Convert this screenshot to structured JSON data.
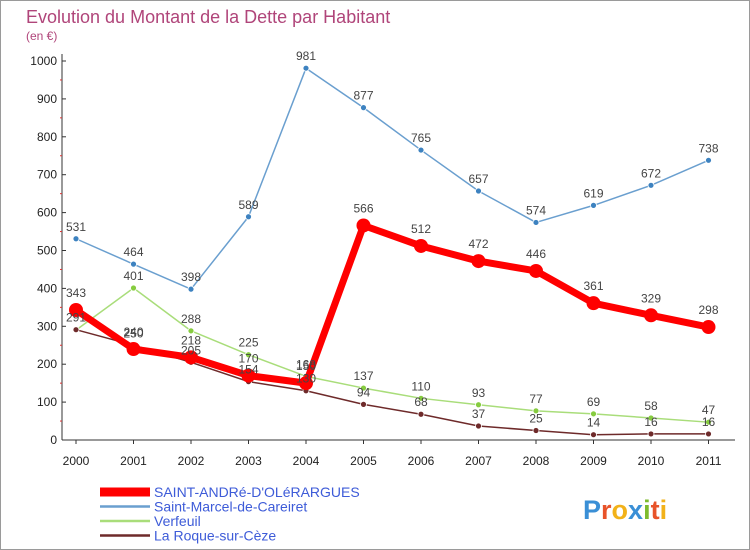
{
  "header": {
    "title": "Evolution du Montant de la Dette par Habitant",
    "subtitle": "(en €)"
  },
  "logo": {
    "letters": [
      "P",
      "r",
      "o",
      "x",
      "i",
      "t",
      "i"
    ],
    "colors": [
      "#3a8fd6",
      "#e8532a",
      "#f2b21a",
      "#3a8fd6",
      "#7dbb2e",
      "#e8532a",
      "#f2b21a"
    ]
  },
  "chart_data": {
    "type": "line",
    "title": "Evolution du Montant de la Dette par Habitant",
    "subtitle": "(en €)",
    "x": [
      "2000",
      "2001",
      "2002",
      "2003",
      "2004",
      "2005",
      "2006",
      "2007",
      "2008",
      "2009",
      "2010",
      "2011"
    ],
    "ylim": [
      0,
      1000
    ],
    "yticks": [
      0,
      100,
      200,
      300,
      400,
      500,
      600,
      700,
      800,
      900,
      1000
    ],
    "grid": false,
    "legend_position": "bottom-left",
    "series": [
      {
        "name": "Saint-Marcel-de-Careiret",
        "color": "#6a9fcf",
        "point_color": "#3d82c0",
        "values": [
          531,
          464,
          398,
          589,
          981,
          877,
          765,
          657,
          574,
          619,
          672,
          738
        ],
        "labels": [
          "531",
          "464",
          "398",
          "589",
          "981",
          "877",
          "765",
          "657",
          "574",
          "619",
          "672",
          "738"
        ]
      },
      {
        "name": "Verfeuil",
        "color": "#a9dd7a",
        "point_color": "#86cc3f",
        "values": [
          290,
          401,
          288,
          225,
          168,
          137,
          110,
          93,
          77,
          69,
          58,
          47
        ],
        "labels": [
          "",
          "401",
          "288",
          "225",
          "168",
          "137",
          "110",
          "93",
          "77",
          "69",
          "58",
          "47"
        ]
      },
      {
        "name": "La Roque-sur-Cèze",
        "color": "#6e2a2a",
        "point_color": "#6e2a2a",
        "values": [
          291,
          250,
          205,
          154,
          130,
          94,
          68,
          37,
          25,
          14,
          16,
          16
        ],
        "labels": [
          "291",
          "250",
          "205",
          "154",
          "130",
          "94",
          "68",
          "37",
          "25",
          "14",
          "16",
          "16"
        ]
      },
      {
        "name": "SAINT-ANDRé-D'OLéRARGUES",
        "color": "#ff0000",
        "point_color": "#ff0000",
        "values": [
          343,
          240,
          218,
          170,
          150,
          566,
          512,
          472,
          446,
          361,
          329,
          298
        ],
        "labels": [
          "343",
          "240",
          "218",
          "170",
          "150",
          "566",
          "512",
          "472",
          "446",
          "361",
          "329",
          "298"
        ]
      }
    ],
    "legend": [
      {
        "name": "SAINT-ANDRé-D'OLéRARGUES",
        "color": "#ff0000",
        "text_color": "#3d5bd8"
      },
      {
        "name": "Saint-Marcel-de-Careiret",
        "color": "#6a9fcf",
        "text_color": "#3d5bd8"
      },
      {
        "name": "Verfeuil",
        "color": "#a9dd7a",
        "text_color": "#3d5bd8"
      },
      {
        "name": "La Roque-sur-Cèze",
        "color": "#6e2a2a",
        "text_color": "#3d5bd8"
      }
    ]
  }
}
